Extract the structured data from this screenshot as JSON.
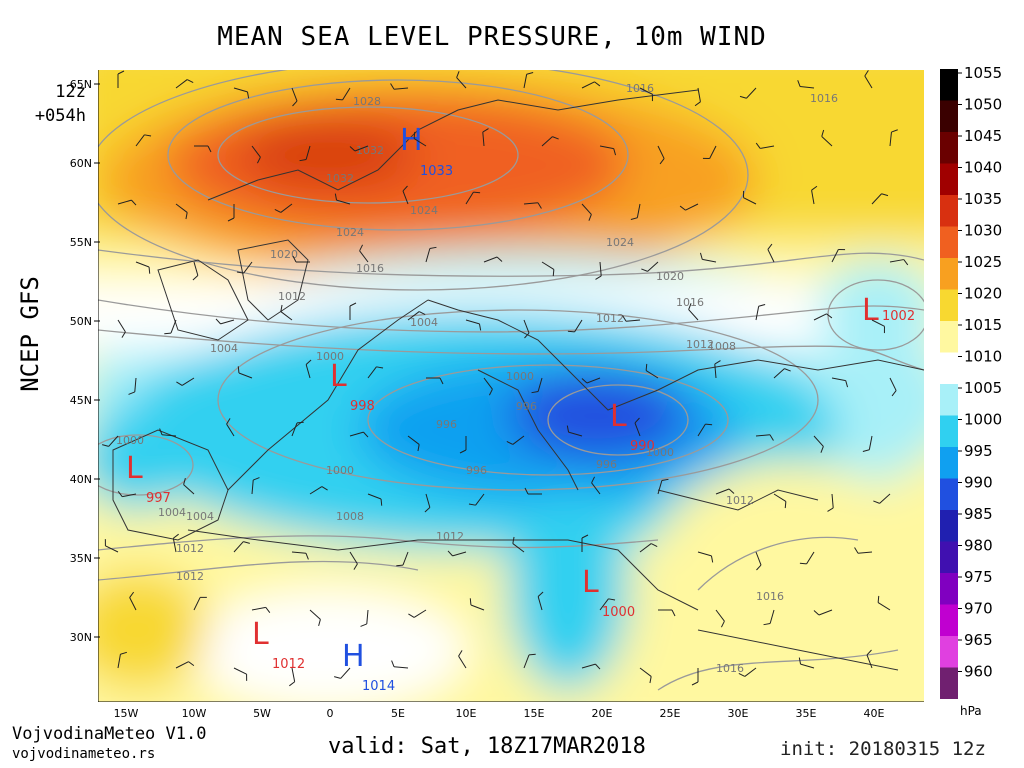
{
  "title": "MEAN SEA LEVEL PRESSURE, 10m WIND",
  "run_hour": "12z",
  "forecast_step": "+054h",
  "model": "NCEP GFS",
  "valid": "valid: Sat, 18Z17MAR2018",
  "init": "init: 20180315 12z",
  "credit": "VojvodinaMeteo V1.0",
  "credit_url": "vojvodinameteo.rs",
  "unit": "hPa",
  "lat_labels": [
    "65N",
    "60N",
    "55N",
    "50N",
    "45N",
    "40N",
    "35N",
    "30N"
  ],
  "lon_labels": [
    "15W",
    "10W",
    "5W",
    "0",
    "5E",
    "10E",
    "15E",
    "20E",
    "25E",
    "30E",
    "35E",
    "40E"
  ],
  "colorbar": {
    "values": [
      "1055",
      "1050",
      "1045",
      "1040",
      "1035",
      "1030",
      "1025",
      "1020",
      "1015",
      "1010",
      "1005",
      "1000",
      "995",
      "990",
      "985",
      "980",
      "975",
      "970",
      "965",
      "960"
    ],
    "colors": [
      "#000000",
      "#3a0000",
      "#6a0000",
      "#a00000",
      "#d83010",
      "#f06020",
      "#f8a020",
      "#f8d830",
      "#fff8a0",
      "#ffffff",
      "#a8f0f8",
      "#30d0f0",
      "#10a0f0",
      "#2050e0",
      "#2020b0",
      "#4010b0",
      "#8000c0",
      "#c000d0",
      "#e040e0",
      "#702070"
    ]
  },
  "systems": [
    {
      "type": "H",
      "value": "1033",
      "color": "#2050e0"
    },
    {
      "type": "L",
      "value": "998",
      "color": "#e03030"
    },
    {
      "type": "L",
      "value": "997",
      "color": "#e03030"
    },
    {
      "type": "L",
      "value": "990",
      "color": "#e03030"
    },
    {
      "type": "L",
      "value": "1000",
      "color": "#e03030"
    },
    {
      "type": "L",
      "value": "1012",
      "color": "#e03030"
    },
    {
      "type": "H",
      "value": "1014",
      "color": "#2050e0"
    },
    {
      "type": "L",
      "value": "1002",
      "color": "#e03030"
    }
  ],
  "isobar_labels": [
    "1028",
    "1032",
    "1032",
    "1016",
    "1016",
    "1024",
    "1024",
    "1024",
    "1020",
    "1016",
    "1020",
    "1016",
    "1012",
    "1012",
    "1012",
    "1008",
    "1004",
    "1004",
    "1004",
    "1000",
    "1000",
    "1000",
    "1000",
    "996",
    "996",
    "996",
    "996",
    "1000",
    "1004",
    "1008",
    "1012",
    "1012",
    "1016",
    "1012",
    "1012",
    "1016"
  ]
}
